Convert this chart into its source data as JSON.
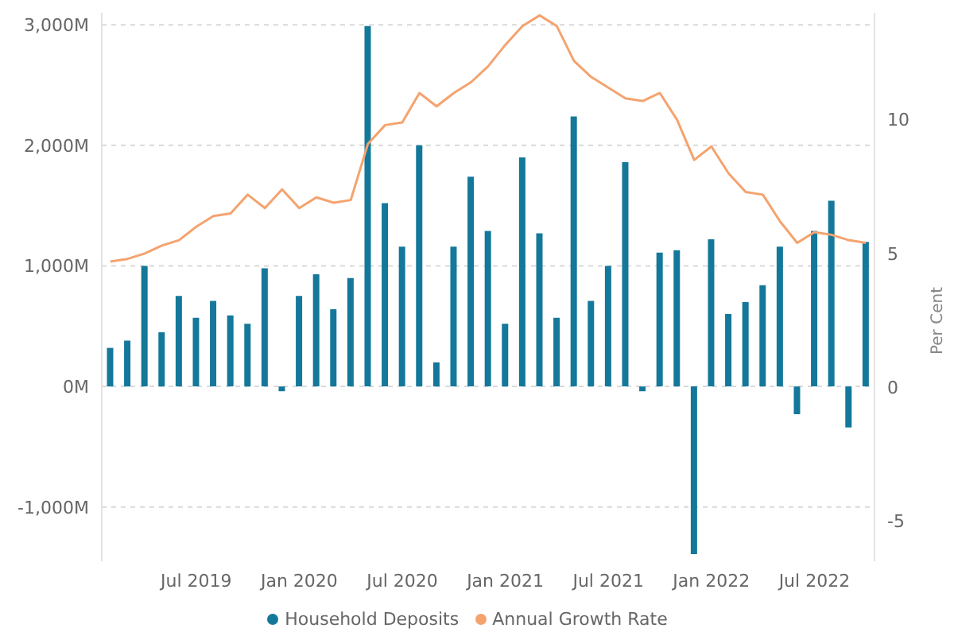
{
  "chart_data": {
    "type": "bar",
    "ylabel": null,
    "y2label": "Per Cent",
    "categories": [
      null,
      null,
      null,
      null,
      null,
      "Jul 2019",
      null,
      null,
      null,
      null,
      null,
      "Jan 2020",
      null,
      null,
      null,
      null,
      null,
      "Jul 2020",
      null,
      null,
      null,
      null,
      null,
      "Jan 2021",
      null,
      null,
      null,
      null,
      null,
      "Jul 2021",
      null,
      null,
      null,
      null,
      null,
      "Jan 2022",
      null,
      null,
      null,
      null,
      null,
      "Jul 2022",
      null,
      null,
      null
    ],
    "series": [
      {
        "name": "Household Deposits",
        "color": "#14789a",
        "values": [
          320,
          380,
          1000,
          450,
          750,
          570,
          710,
          590,
          520,
          980,
          -40,
          750,
          930,
          640,
          900,
          2990,
          1520,
          1160,
          2000,
          200,
          1160,
          1740,
          1290,
          520,
          1900,
          1270,
          570,
          2240,
          710,
          1000,
          1860,
          -40,
          1110,
          1130,
          -1390,
          1220,
          600,
          700,
          840,
          1160,
          -230,
          1290,
          1540,
          -340,
          1200
        ]
      },
      {
        "name": "Annual Growth Rate",
        "type": "line",
        "axis": "y2",
        "color": "#f4a36f",
        "values": [
          4.7,
          4.8,
          5.0,
          5.3,
          5.5,
          6.0,
          6.4,
          6.5,
          7.2,
          6.7,
          7.4,
          6.7,
          7.1,
          6.9,
          7.0,
          9.1,
          9.8,
          9.9,
          11.0,
          10.5,
          11.0,
          11.4,
          12.0,
          12.8,
          13.5,
          13.9,
          13.5,
          12.2,
          11.6,
          11.2,
          10.8,
          10.7,
          11.0,
          10.0,
          8.5,
          9.0,
          8.0,
          7.3,
          7.2,
          6.2,
          5.4,
          5.8,
          5.7,
          5.5,
          5.4
        ]
      }
    ],
    "ylim": [
      -1450,
      3100
    ],
    "yticks": [
      {
        "value": -1000,
        "label": "-1,000M"
      },
      {
        "value": 0,
        "label": "0M"
      },
      {
        "value": 1000,
        "label": "1,000M"
      },
      {
        "value": 2000,
        "label": "2,000M"
      },
      {
        "value": 3000,
        "label": "3,000M"
      }
    ],
    "y2lim": [
      -6.5,
      14
    ],
    "y2ticks": [
      -5,
      0,
      5,
      10
    ],
    "grid": "y",
    "legend": "bottom",
    "marker": "none"
  }
}
